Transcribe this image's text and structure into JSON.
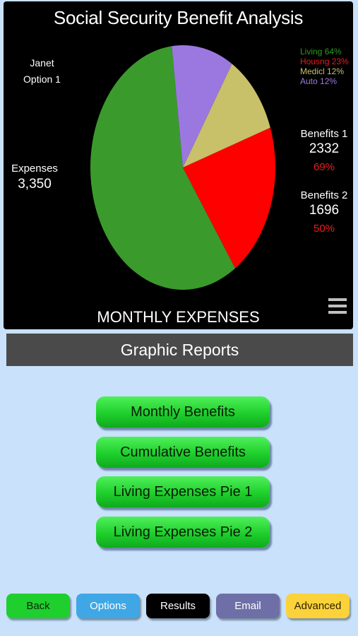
{
  "chart": {
    "title": "Social Security Benefit Analysis",
    "name": "Janet",
    "option": "Option 1",
    "expenses_label": "Expenses",
    "expenses_value": "3,350",
    "caption": "MONTHLY EXPENSES",
    "legend": [
      {
        "label": "Living 64%",
        "color": "#2e9a1e"
      },
      {
        "label": "Housng 23%",
        "color": "#ee1b1b"
      },
      {
        "label": "Medicl 12%",
        "color": "#c9c06a"
      },
      {
        "label": "Auto 12%",
        "color": "#9b7be0"
      }
    ],
    "benefits": [
      {
        "label": "Benefits 1",
        "value": "2332",
        "percent": "69%"
      },
      {
        "label": "Benefits 2",
        "value": "1696",
        "percent": "50%"
      }
    ],
    "menu_icon": "hamburger-menu-icon"
  },
  "chart_data": {
    "type": "pie",
    "categories": [
      "Living",
      "Housng",
      "Medicl",
      "Auto"
    ],
    "values": [
      64,
      23,
      12,
      12
    ],
    "colors": [
      "#3b9a2c",
      "#ff0000",
      "#c9c06a",
      "#9b78e0"
    ]
  },
  "section": {
    "title": "Graphic Reports"
  },
  "reports": [
    {
      "label": "Monthly Benefits"
    },
    {
      "label": "Cumulative Benefits"
    },
    {
      "label": "Living Expenses Pie 1"
    },
    {
      "label": "Living Expenses Pie 2"
    }
  ],
  "nav": [
    {
      "label": "Back",
      "bg": "#1fcf2e",
      "fg": "#0b2a0b"
    },
    {
      "label": "Options",
      "bg": "#3fa7e6",
      "fg": "#ffffff"
    },
    {
      "label": "Results",
      "bg": "#000000",
      "fg": "#ffffff"
    },
    {
      "label": "Email",
      "bg": "#6f6fa7",
      "fg": "#ffffff"
    },
    {
      "label": "Advanced",
      "bg": "#fcd23a",
      "fg": "#2a1f00"
    }
  ]
}
